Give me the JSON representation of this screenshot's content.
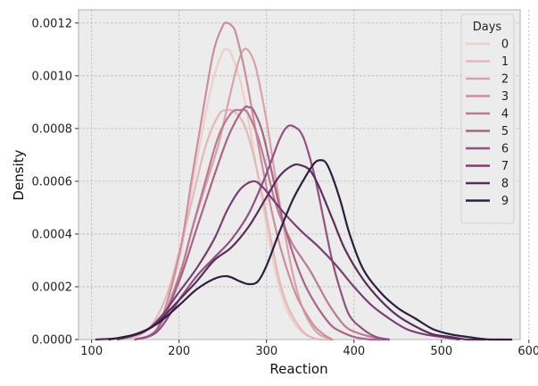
{
  "chart_data": {
    "type": "line",
    "kind": "kde",
    "xlabel": "Reaction",
    "ylabel": "Density",
    "xlim": [
      85,
      590
    ],
    "ylim": [
      0,
      0.00125
    ],
    "xticks": [
      "100",
      "200",
      "300",
      "400",
      "500",
      "600"
    ],
    "yticks": [
      "0.0000",
      "0.0002",
      "0.0004",
      "0.0006",
      "0.0008",
      "0.0010",
      "0.0012"
    ],
    "grid": true,
    "legend": {
      "title": "Days",
      "placement": "top-right"
    },
    "series": [
      {
        "name": "0",
        "color": "#ecd0cb",
        "x": [
          150,
          175,
          200,
          215,
          230,
          240,
          250,
          255,
          260,
          270,
          280,
          290,
          300,
          310,
          320,
          330,
          340,
          350,
          360,
          365
        ],
        "y": [
          0.0,
          4e-05,
          0.0003,
          0.00058,
          0.00085,
          0.001,
          0.00109,
          0.0011,
          0.00108,
          0.00098,
          0.00082,
          0.00062,
          0.00043,
          0.00026,
          0.00014,
          7e-05,
          3e-05,
          1e-05,
          0.0,
          0.0
        ]
      },
      {
        "name": "1",
        "color": "#e4b8b7",
        "x": [
          140,
          165,
          185,
          200,
          215,
          230,
          245,
          255,
          265,
          275,
          285,
          295,
          305,
          315,
          325,
          335,
          345,
          360,
          375
        ],
        "y": [
          0.0,
          4e-05,
          0.00016,
          0.00033,
          0.00053,
          0.00073,
          0.00085,
          0.00087,
          0.00086,
          0.00081,
          0.0007,
          0.00055,
          0.00038,
          0.00022,
          0.00012,
          6e-05,
          2e-05,
          0.0,
          0.0
        ]
      },
      {
        "name": "2",
        "color": "#d9a2a9",
        "x": [
          150,
          175,
          200,
          215,
          230,
          245,
          255,
          265,
          272,
          278,
          285,
          290,
          300,
          310,
          320,
          330,
          340,
          350,
          360,
          375
        ],
        "y": [
          0.0,
          4e-05,
          0.00024,
          0.00042,
          0.00058,
          0.00074,
          0.00088,
          0.00102,
          0.00109,
          0.0011,
          0.00106,
          0.001,
          0.00083,
          0.00062,
          0.00042,
          0.00025,
          0.00013,
          6e-05,
          2e-05,
          0.0
        ]
      },
      {
        "name": "3",
        "color": "#cc8e9f",
        "x": [
          150,
          175,
          200,
          215,
          230,
          240,
          250,
          255,
          260,
          265,
          275,
          285,
          295,
          305,
          315,
          325,
          335,
          345,
          355,
          365,
          375
        ],
        "y": [
          0.0,
          4e-05,
          0.00032,
          0.00062,
          0.00092,
          0.0011,
          0.00119,
          0.0012,
          0.00119,
          0.00116,
          0.00102,
          0.00084,
          0.00066,
          0.0005,
          0.00036,
          0.00025,
          0.00016,
          0.0001,
          5e-05,
          2e-05,
          0.0
        ]
      },
      {
        "name": "4",
        "color": "#bc7a94",
        "x": [
          150,
          175,
          200,
          215,
          230,
          245,
          260,
          270,
          275,
          280,
          290,
          300,
          310,
          320,
          330,
          340,
          350,
          360,
          370,
          380,
          390,
          400,
          420,
          440
        ],
        "y": [
          0.0,
          4e-05,
          0.00024,
          0.00042,
          0.0006,
          0.00077,
          0.00086,
          0.00087,
          0.00087,
          0.00085,
          0.00077,
          0.00065,
          0.00052,
          0.00043,
          0.00036,
          0.00031,
          0.00026,
          0.0002,
          0.00014,
          9e-05,
          5e-05,
          3e-05,
          1e-05,
          0.0
        ]
      },
      {
        "name": "5",
        "color": "#a86489",
        "x": [
          150,
          175,
          200,
          220,
          240,
          255,
          265,
          275,
          280,
          285,
          295,
          305,
          315,
          325,
          335,
          345,
          355,
          365,
          375,
          385,
          400,
          420,
          440
        ],
        "y": [
          0.0,
          4e-05,
          0.00022,
          0.00042,
          0.00062,
          0.00076,
          0.00083,
          0.00088,
          0.00088,
          0.00087,
          0.00079,
          0.00065,
          0.0005,
          0.00038,
          0.00028,
          0.0002,
          0.00014,
          9e-05,
          5e-05,
          3e-05,
          1e-05,
          0.0,
          0.0
        ]
      },
      {
        "name": "6",
        "color": "#925180",
        "x": [
          150,
          175,
          200,
          220,
          240,
          260,
          280,
          300,
          315,
          325,
          335,
          340,
          345,
          355,
          365,
          375,
          385,
          395,
          410,
          425,
          440
        ],
        "y": [
          0.0,
          3e-05,
          0.00015,
          0.00024,
          0.00031,
          0.00038,
          0.00048,
          0.00063,
          0.00076,
          0.00081,
          0.0008,
          0.00078,
          0.00074,
          0.00062,
          0.00046,
          0.0003,
          0.00018,
          9e-05,
          4e-05,
          1e-05,
          0.0
        ]
      },
      {
        "name": "7",
        "color": "#7a3f73",
        "x": [
          130,
          160,
          180,
          200,
          220,
          240,
          255,
          270,
          285,
          295,
          305,
          320,
          340,
          360,
          380,
          400,
          420,
          440,
          460,
          480,
          500,
          520
        ],
        "y": [
          0.0,
          3e-05,
          9e-05,
          0.00018,
          0.00027,
          0.00038,
          0.00049,
          0.00057,
          0.0006,
          0.00058,
          0.00054,
          0.00048,
          0.00041,
          0.00035,
          0.00028,
          0.0002,
          0.00013,
          8e-05,
          4e-05,
          2e-05,
          1e-05,
          0.0
        ]
      },
      {
        "name": "8",
        "color": "#5b2d5a",
        "x": [
          105,
          140,
          170,
          200,
          220,
          240,
          260,
          280,
          300,
          315,
          330,
          340,
          350,
          360,
          375,
          390,
          410,
          430,
          450,
          470,
          490,
          510,
          530,
          550
        ],
        "y": [
          0.0,
          1e-05,
          5e-05,
          0.00015,
          0.00022,
          0.0003,
          0.00035,
          0.00043,
          0.00054,
          0.00062,
          0.00066,
          0.00066,
          0.00064,
          0.00058,
          0.00046,
          0.00034,
          0.00023,
          0.00015,
          9e-05,
          5e-05,
          2e-05,
          1e-05,
          0.0,
          0.0
        ]
      },
      {
        "name": "9",
        "color": "#2d1e3e",
        "x": [
          120,
          150,
          175,
          200,
          220,
          240,
          255,
          270,
          280,
          290,
          300,
          315,
          330,
          345,
          355,
          362,
          368,
          375,
          385,
          395,
          410,
          430,
          450,
          470,
          490,
          510,
          530,
          555,
          580
        ],
        "y": [
          0.0,
          2e-05,
          6e-05,
          0.00013,
          0.00019,
          0.00023,
          0.00024,
          0.00022,
          0.00021,
          0.00022,
          0.00028,
          0.00041,
          0.00053,
          0.00062,
          0.00067,
          0.00068,
          0.00067,
          0.00062,
          0.00052,
          0.0004,
          0.00027,
          0.00018,
          0.00012,
          8e-05,
          4e-05,
          2e-05,
          1e-05,
          0.0,
          0.0
        ]
      }
    ]
  }
}
